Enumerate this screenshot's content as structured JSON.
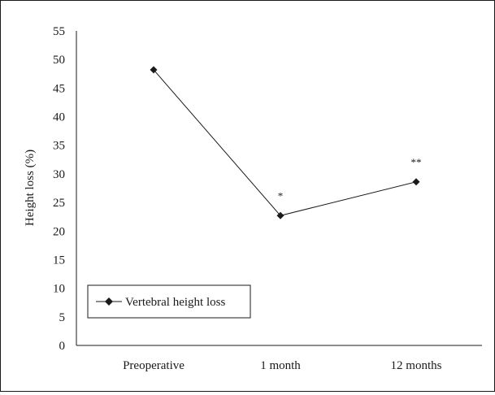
{
  "chart_data": {
    "type": "line",
    "title": "",
    "xlabel": "",
    "ylabel": "Height loss (%)",
    "categories": [
      "Preoperative",
      "1 month",
      "12 months"
    ],
    "series": [
      {
        "name": "Vertebral height loss",
        "values": [
          48.2,
          22.7,
          28.6
        ]
      }
    ],
    "annotations": [
      "",
      "*",
      "**"
    ],
    "yticks": [
      0,
      5,
      10,
      15,
      20,
      25,
      30,
      35,
      40,
      45,
      50,
      55
    ],
    "ylim": [
      0,
      55
    ],
    "grid": false,
    "legend_position": "bottom-left",
    "colors": {
      "line": "#1a1a1a",
      "marker": "#1a1a1a",
      "text": "#1a1a1a"
    }
  }
}
